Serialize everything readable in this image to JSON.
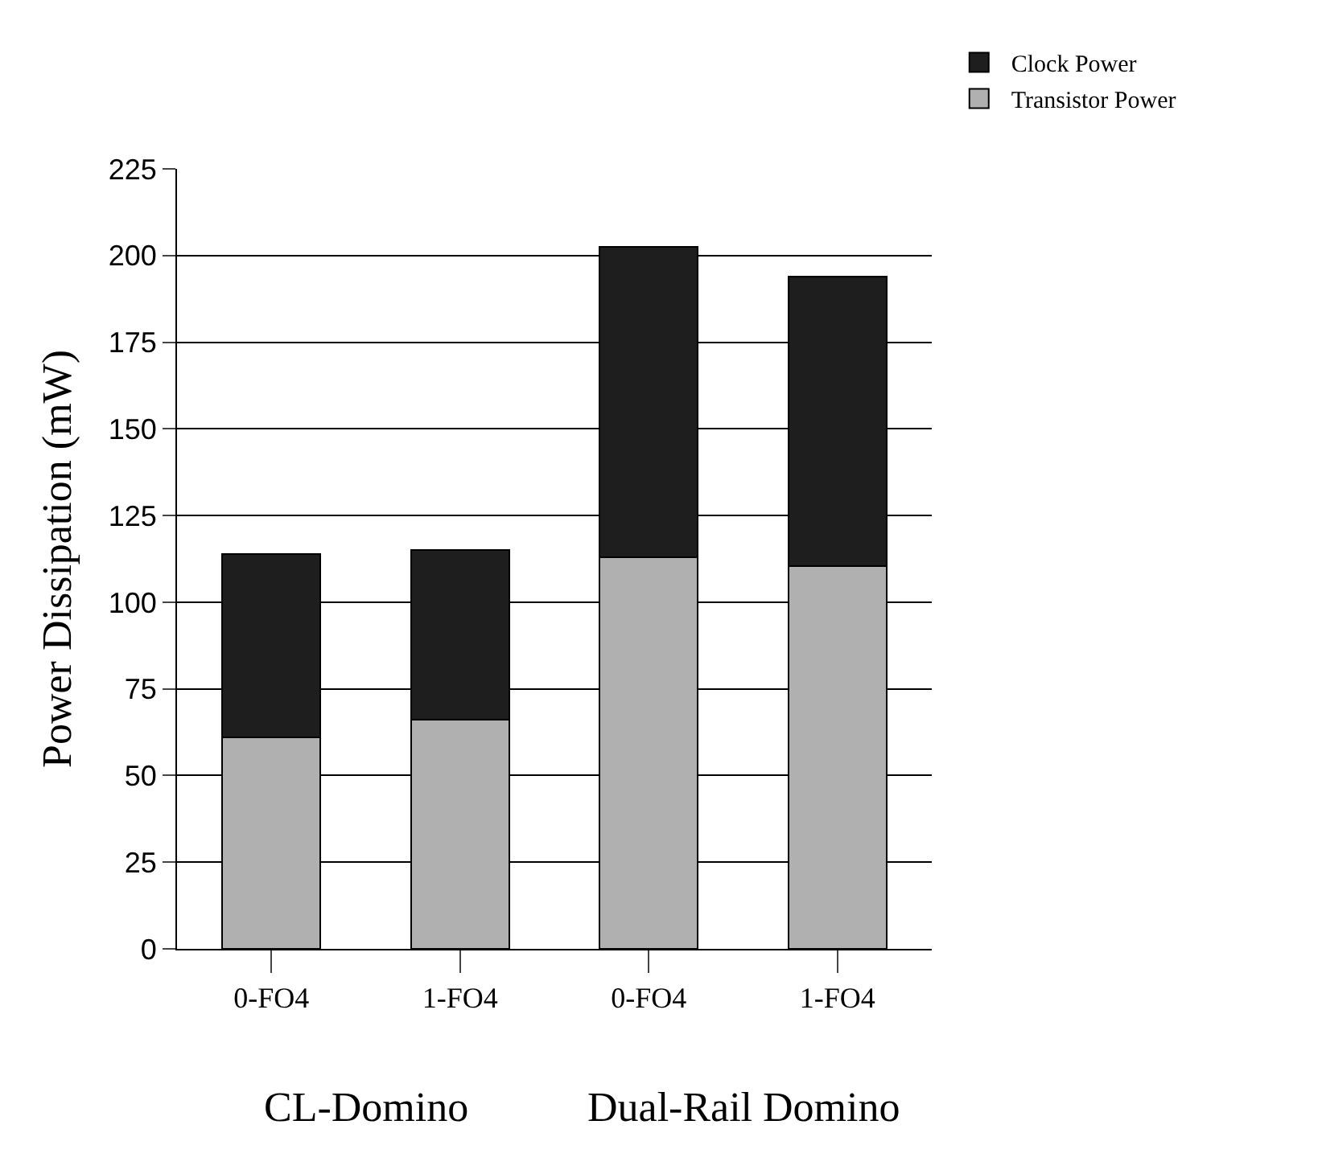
{
  "chart_data": {
    "type": "bar",
    "stacked": true,
    "ylabel": "Power Dissipation (mW)",
    "categories": [
      "0-FO4",
      "1-FO4",
      "0-FO4",
      "1-FO4"
    ],
    "series": [
      {
        "name": "Transistor Power",
        "color": "#b0b0b0",
        "values": [
          61,
          66,
          113,
          110.5
        ]
      },
      {
        "name": "Clock Power",
        "color": "#1e1e1e",
        "values": [
          53,
          49,
          89.5,
          83.5
        ]
      }
    ],
    "ylim": [
      0,
      225
    ],
    "yticks": [
      0,
      25,
      50,
      75,
      100,
      125,
      150,
      175,
      200,
      225
    ],
    "grid": "y",
    "legend": "top right",
    "annotations": [
      "CL-Domino",
      "Dual-Rail Domino"
    ]
  }
}
